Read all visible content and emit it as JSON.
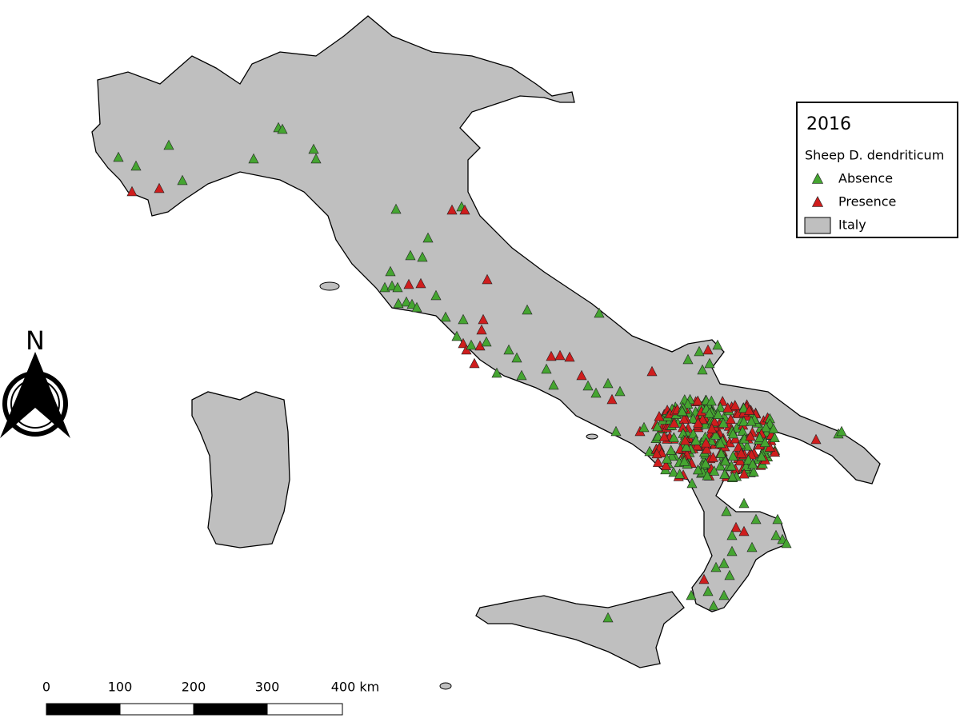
{
  "legend": {
    "title": "2016",
    "subtitle": "Sheep D. dendriticum",
    "items": [
      {
        "label": "Absence",
        "color": "#45a531"
      },
      {
        "label": "Presence",
        "color": "#cf1d1d"
      }
    ],
    "area": {
      "label": "Italy",
      "color": "#bfbfbf"
    }
  },
  "north_arrow": {
    "label": "N"
  },
  "scale_bar": {
    "labels": [
      "0",
      "100",
      "200",
      "300",
      "400 km"
    ]
  }
}
